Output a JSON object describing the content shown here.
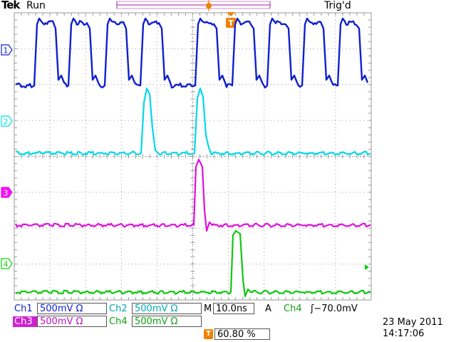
{
  "header": {
    "brand": "Tek",
    "acq_state": "Run",
    "trigger_status": "Trig'd",
    "trigger_marker": "T"
  },
  "channels": [
    {
      "id": "1",
      "color": "#1020d0",
      "wave": "clock",
      "marker_filled": false
    },
    {
      "id": "2",
      "color": "#00e0f0",
      "wave": "pulse",
      "marker_filled": false
    },
    {
      "id": "3",
      "color": "#f010f0",
      "wave": "pulse",
      "marker_filled": true
    },
    {
      "id": "4",
      "color": "#10d010",
      "wave": "pulse",
      "marker_filled": false
    }
  ],
  "readout": {
    "ch1_label": "Ch1",
    "ch1_scale": "500mV Ω",
    "ch2_label": "Ch2",
    "ch2_scale": "500mV Ω",
    "ch3_label": "Ch3",
    "ch3_scale": "500mV Ω",
    "ch4_label": "Ch4",
    "ch4_scale": "500mV Ω",
    "timebase_prefix": "M",
    "timebase": "10.0ns",
    "trig_mode": "A",
    "trig_source": "Ch4",
    "trig_slope_level": "ʃ−70.0mV",
    "trig_pos_marker": "T",
    "trig_pos": "60.80 %",
    "date": "23 May 2011",
    "time": "14:17:06"
  },
  "colors": {
    "ch1": "#1020d0",
    "ch2": "#00d8e8",
    "ch3": "#e010e0",
    "ch4": "#10c810",
    "grid": "#9a9a9a",
    "trigger": "#f08000",
    "record_bar": "#a020a0"
  }
}
